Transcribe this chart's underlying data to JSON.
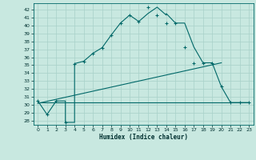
{
  "title": "",
  "xlabel": "Humidex (Indice chaleur)",
  "ylabel": "",
  "bg_color": "#c8e8e0",
  "grid_color": "#a8d0c8",
  "line_color": "#006868",
  "xlim": [
    -0.5,
    23.5
  ],
  "ylim": [
    27.5,
    42.8
  ],
  "yticks": [
    28,
    29,
    30,
    31,
    32,
    33,
    34,
    35,
    36,
    37,
    38,
    39,
    40,
    41,
    42
  ],
  "xticks": [
    0,
    1,
    2,
    3,
    4,
    5,
    6,
    7,
    8,
    9,
    10,
    11,
    12,
    13,
    14,
    15,
    16,
    17,
    18,
    19,
    20,
    21,
    22,
    23
  ],
  "main_x": [
    0,
    1,
    2,
    3,
    3,
    4,
    4,
    5,
    6,
    7,
    8,
    9,
    10,
    11,
    12,
    13,
    14,
    14,
    15,
    16,
    17,
    18,
    19,
    20,
    21,
    22,
    23
  ],
  "main_y": [
    30.5,
    28.8,
    30.5,
    30.5,
    27.8,
    27.8,
    35.2,
    35.5,
    36.5,
    37.2,
    38.8,
    40.3,
    41.3,
    40.5,
    41.5,
    42.3,
    41.3,
    41.5,
    40.3,
    40.3,
    37.3,
    35.3,
    35.3,
    32.3,
    30.3,
    30.3,
    30.3
  ],
  "trend_x": [
    0,
    20
  ],
  "trend_y": [
    30.2,
    35.3
  ],
  "hline_x": [
    0,
    23
  ],
  "hline_y": [
    30.3,
    30.3
  ],
  "marker_x": [
    0,
    1,
    2,
    3,
    4,
    5,
    6,
    7,
    8,
    9,
    10,
    11,
    12,
    13,
    14,
    15,
    16,
    17,
    18,
    19,
    20,
    21,
    22,
    23
  ],
  "marker_y": [
    30.5,
    28.8,
    30.5,
    27.8,
    35.2,
    35.5,
    36.5,
    37.2,
    38.8,
    40.3,
    41.3,
    40.5,
    42.3,
    41.3,
    40.3,
    40.3,
    37.3,
    35.3,
    35.3,
    35.3,
    32.3,
    30.3,
    30.3,
    30.3
  ]
}
